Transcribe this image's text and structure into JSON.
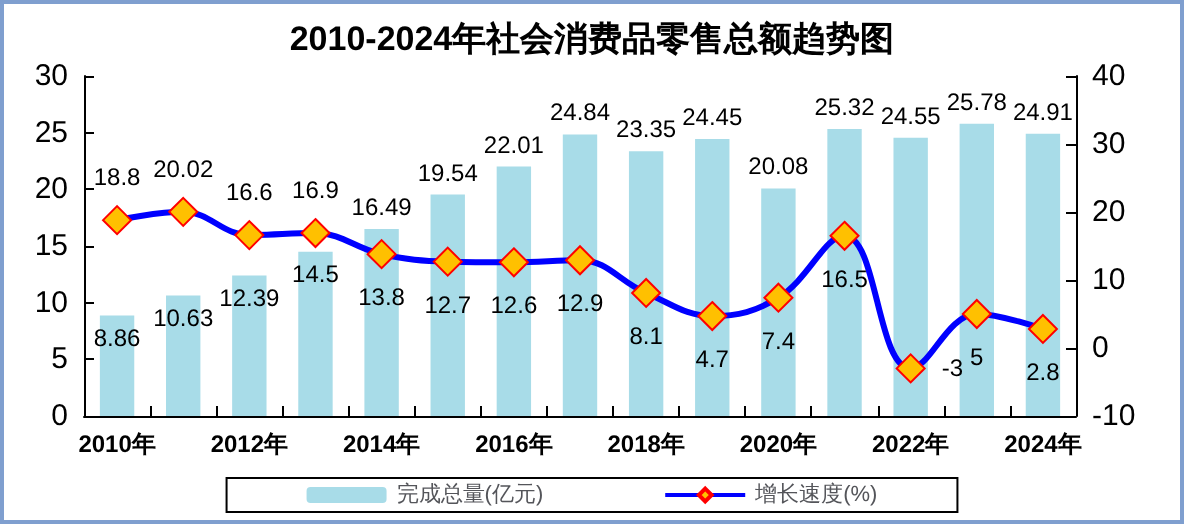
{
  "chart_data": {
    "type": "bar",
    "title": "2010-2024年社会消费品零售总额趋势图",
    "categories": [
      "2010年",
      null,
      "2012年",
      null,
      "2014年",
      null,
      "2016年",
      null,
      "2018年",
      null,
      "2020年",
      null,
      "2022年",
      null,
      "2024年"
    ],
    "series": [
      {
        "name": "完成总量(亿元)",
        "color": "#a8dce8",
        "values": [
          8.86,
          10.63,
          12.39,
          14.5,
          16.49,
          19.54,
          22.01,
          24.84,
          23.35,
          24.45,
          20.08,
          25.32,
          24.55,
          25.78,
          24.91
        ]
      },
      {
        "name": "增长速度(%)",
        "type": "line",
        "axis": "y2",
        "color": "#0000ff",
        "marker": "diamond",
        "values": [
          18.8,
          20.02,
          16.6,
          16.9,
          13.8,
          12.7,
          12.6,
          12.9,
          8.1,
          4.7,
          7.4,
          16.5,
          -3,
          5,
          2.8
        ]
      }
    ],
    "ylim": [
      0,
      30
    ],
    "yticks": [
      0,
      5,
      10,
      15,
      20,
      25,
      30
    ],
    "y2lim": [
      -10,
      40
    ],
    "y2ticks": [
      -10,
      0,
      10,
      20,
      30,
      40
    ],
    "data_labels": true,
    "grid": false,
    "legend": "bottom"
  }
}
